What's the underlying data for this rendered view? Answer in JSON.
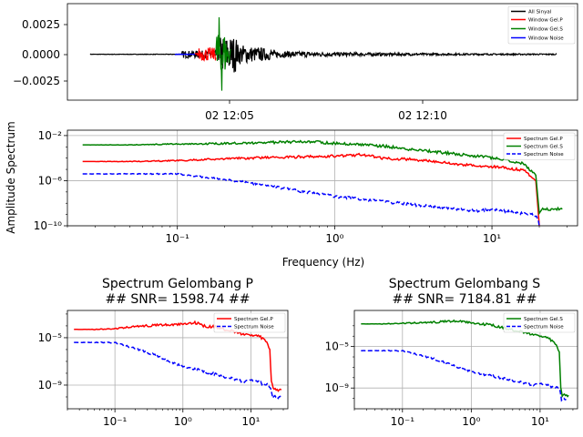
{
  "chart_data": [
    {
      "id": "waveform",
      "type": "line",
      "x_ticklabels": [
        "02 12:05",
        "02 12:10"
      ],
      "y_ticklabels": [
        "0.0025",
        "0.0000",
        "−0.0025"
      ],
      "yticks": [
        0.0025,
        0,
        -0.0025
      ],
      "ylim": [
        -0.0038,
        0.0042
      ],
      "legend": [
        "All Sinyal",
        "Window Gel.P",
        "Window Gel.S",
        "Window Noise"
      ],
      "legend_position": "top-right",
      "grid": false,
      "colors": [
        "#000000",
        "#ff0000",
        "#008000",
        "#0000ff"
      ]
    },
    {
      "id": "spectrum-combined",
      "type": "line",
      "xscale": "log",
      "yscale": "log",
      "xlabel": "Frequency (Hz)",
      "ylabel": "Amplitude Spectrum",
      "x_ticklabels": [
        "10⁻¹",
        "10⁰",
        "10¹"
      ],
      "y_ticklabels": [
        "10⁻²",
        "10⁻⁶",
        "10⁻¹⁰"
      ],
      "xlim": [
        0.02,
        35
      ],
      "ylim": [
        1e-10,
        0.03
      ],
      "legend": [
        "Spectrum Gel.P",
        "Spectrum Gel.S",
        "Spectrum Noise"
      ],
      "legend_position": "top-right",
      "grid": true,
      "series": [
        {
          "name": "Spectrum Gel.P",
          "color": "#ff0000",
          "style": "solid",
          "x": [
            0.025,
            0.05,
            0.1,
            0.2,
            0.5,
            1.0,
            1.5,
            2.0,
            3.0,
            5.0,
            8.0,
            12.0,
            16.0,
            19.0,
            20.0
          ],
          "y": [
            5e-05,
            5e-05,
            6e-05,
            9e-05,
            0.00012,
            0.00015,
            0.0002,
            0.0001,
            8e-05,
            4e-05,
            2e-05,
            1.5e-05,
            8e-06,
            1e-06,
            1e-10
          ]
        },
        {
          "name": "Spectrum Gel.S",
          "color": "#008000",
          "style": "solid",
          "x": [
            0.025,
            0.05,
            0.1,
            0.2,
            0.4,
            0.7,
            1.0,
            2.0,
            3.0,
            5.0,
            8.0,
            12.0,
            16.0,
            19.0,
            20.0,
            21.0,
            28.0
          ],
          "y": [
            0.0015,
            0.0015,
            0.0018,
            0.002,
            0.0025,
            0.003,
            0.002,
            0.0012,
            0.0006,
            0.0003,
            0.00015,
            8e-05,
            3e-05,
            3e-06,
            1e-09,
            3e-09,
            3e-09
          ]
        },
        {
          "name": "Spectrum Noise",
          "color": "#0000ff",
          "style": "dashed",
          "x": [
            0.025,
            0.05,
            0.1,
            0.15,
            0.3,
            0.6,
            1.0,
            2.0,
            3.0,
            5.0,
            8.0,
            10.0,
            14.0,
            18.0,
            19.5,
            20.0
          ],
          "y": [
            4e-06,
            4e-06,
            4e-06,
            2e-06,
            6e-07,
            1.2e-07,
            4e-08,
            1.5e-08,
            8e-09,
            4e-09,
            2e-09,
            3e-09,
            1.5e-09,
            1e-09,
            5e-10,
            1e-10
          ]
        }
      ]
    },
    {
      "id": "spectrum-p",
      "type": "line",
      "xscale": "log",
      "yscale": "log",
      "title": "Spectrum Gelombang P\n## SNR= 1598.74 ##",
      "x_ticklabels": [
        "10⁻¹",
        "10⁰",
        "10¹"
      ],
      "y_ticklabels": [
        "10⁻⁵",
        "10⁻⁹"
      ],
      "xlim": [
        0.02,
        35
      ],
      "ylim": [
        1e-11,
        0.002
      ],
      "legend": [
        "Spectrum Gel.P",
        "Spectrum Noise"
      ],
      "legend_position": "top-right",
      "grid": true,
      "series": [
        {
          "name": "Spectrum Gel.P",
          "color": "#ff0000",
          "style": "solid",
          "x": [
            0.025,
            0.05,
            0.1,
            0.2,
            0.5,
            1.0,
            1.5,
            2.0,
            3.0,
            5.0,
            8.0,
            12.0,
            16.0,
            19.0,
            20.0,
            22.0,
            28.0
          ],
          "y": [
            5e-05,
            5e-05,
            6e-05,
            9e-05,
            0.00012,
            0.00015,
            0.0002,
            0.0001,
            8e-05,
            4e-05,
            2e-05,
            1.5e-05,
            8e-06,
            1e-06,
            2e-09,
            4e-10,
            4e-10
          ]
        },
        {
          "name": "Spectrum Noise",
          "color": "#0000ff",
          "style": "dashed",
          "x": [
            0.025,
            0.05,
            0.1,
            0.15,
            0.3,
            0.6,
            1.0,
            2.0,
            3.0,
            5.0,
            8.0,
            10.0,
            14.0,
            18.0,
            19.5,
            21.0,
            28.0
          ],
          "y": [
            4e-06,
            4e-06,
            4e-06,
            2e-06,
            6e-07,
            1.2e-07,
            4e-08,
            1.5e-08,
            8e-09,
            4e-09,
            2e-09,
            3e-09,
            1.5e-09,
            1e-09,
            5e-10,
            1e-10,
            1e-10
          ]
        }
      ]
    },
    {
      "id": "spectrum-s",
      "type": "line",
      "xscale": "log",
      "yscale": "log",
      "title": "Spectrum Gelombang S\n## SNR= 7184.81 ##",
      "x_ticklabels": [
        "10⁻¹",
        "10⁰",
        "10¹"
      ],
      "y_ticklabels": [
        "10⁻⁵",
        "10⁻⁹"
      ],
      "xlim": [
        0.02,
        35
      ],
      "ylim": [
        1e-11,
        0.03
      ],
      "legend": [
        "Spectrum Gel.S",
        "Spectrum Noise"
      ],
      "legend_position": "top-right",
      "grid": true,
      "series": [
        {
          "name": "Spectrum Gel.S",
          "color": "#008000",
          "style": "solid",
          "x": [
            0.025,
            0.05,
            0.1,
            0.2,
            0.4,
            0.7,
            1.0,
            2.0,
            3.0,
            5.0,
            8.0,
            12.0,
            16.0,
            19.0,
            20.0,
            21.0,
            26.0
          ],
          "y": [
            0.0015,
            0.0015,
            0.0018,
            0.002,
            0.0025,
            0.003,
            0.002,
            0.0012,
            0.0006,
            0.0003,
            0.00015,
            8e-05,
            3e-05,
            3e-06,
            1e-09,
            2e-10,
            2e-10
          ]
        },
        {
          "name": "Spectrum Noise",
          "color": "#0000ff",
          "style": "dashed",
          "x": [
            0.025,
            0.05,
            0.1,
            0.15,
            0.3,
            0.6,
            1.0,
            2.0,
            3.0,
            5.0,
            8.0,
            10.0,
            14.0,
            18.0,
            19.5,
            20.5,
            24.0
          ],
          "y": [
            4e-06,
            4e-06,
            4e-06,
            2e-06,
            6e-07,
            1.2e-07,
            4e-08,
            1.5e-08,
            8e-09,
            4e-09,
            2e-09,
            3e-09,
            1.5e-09,
            1e-09,
            5e-10,
            8e-11,
            8e-11
          ]
        }
      ]
    }
  ]
}
